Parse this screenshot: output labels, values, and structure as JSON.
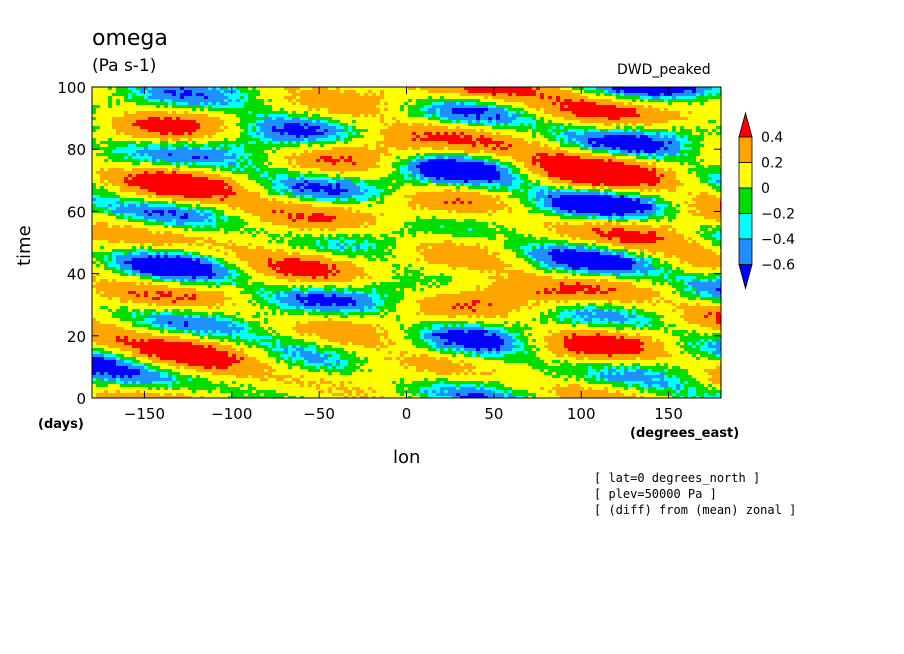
{
  "chart_data": {
    "type": "heatmap",
    "title": "omega",
    "units": "(Pa s-1)",
    "experiment": "DWD_peaked",
    "xlabel": "lon",
    "xunits": "(degrees_east)",
    "ylabel": "time",
    "yunits": "(days)",
    "xlim": [
      -180,
      180
    ],
    "ylim": [
      0,
      100
    ],
    "xticks": [
      -150,
      -100,
      -50,
      0,
      50,
      100,
      150
    ],
    "yticks": [
      0,
      20,
      40,
      60,
      80,
      100
    ],
    "legend_position": "right",
    "colorbar": {
      "levels": [
        0.4,
        0.2,
        0,
        -0.2,
        -0.4,
        -0.6
      ],
      "level_labels": [
        "0.4",
        "0.2",
        "0",
        "-0.2",
        "-0.4",
        "-0.6"
      ],
      "colors": [
        "#ff0000",
        "#ffa500",
        "#ffff00",
        "#00dd00",
        "#00ffff",
        "#1e90ff",
        "#0000ff"
      ]
    },
    "annotations": [
      "[ lat=0 degrees_north ]",
      "[ plev=50000 Pa ]",
      "[ (diff) from (mean) zonal ]"
    ]
  }
}
